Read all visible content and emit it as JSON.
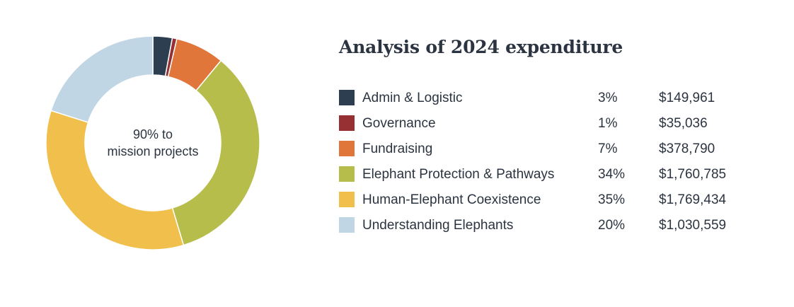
{
  "title": "Analysis of 2024 expenditure",
  "center_label": {
    "line1": "90% to",
    "line2": "mission projects"
  },
  "legend": [
    {
      "label": "Admin & Logistic",
      "percent": "3%",
      "amount": "$149,961",
      "color": "#2c3e4f"
    },
    {
      "label": "Governance",
      "percent": "1%",
      "amount": "$35,036",
      "color": "#973032"
    },
    {
      "label": "Fundraising",
      "percent": "7%",
      "amount": "$378,790",
      "color": "#e0763a"
    },
    {
      "label": "Elephant Protection & Pathways",
      "percent": "34%",
      "amount": "$1,760,785",
      "color": "#b6bd4b"
    },
    {
      "label": "Human-Elephant Coexistence",
      "percent": "35%",
      "amount": "$1,769,434",
      "color": "#f1c04c"
    },
    {
      "label": "Understanding Elephants",
      "percent": "20%",
      "amount": "$1,030,559",
      "color": "#c1d6e4"
    }
  ],
  "chart_data": {
    "type": "pie",
    "title": "Analysis of 2024 expenditure",
    "donut": true,
    "categories": [
      "Admin & Logistic",
      "Governance",
      "Fundraising",
      "Elephant Protection & Pathways",
      "Human-Elephant Coexistence",
      "Understanding Elephants"
    ],
    "values": [
      149961,
      35036,
      378790,
      1760785,
      1769434,
      1030559
    ],
    "percents": [
      3,
      1,
      7,
      34,
      35,
      20
    ],
    "colors": [
      "#2c3e4f",
      "#973032",
      "#e0763a",
      "#b6bd4b",
      "#f1c04c",
      "#c1d6e4"
    ],
    "center_text": "90% to mission projects",
    "legend_position": "right"
  }
}
